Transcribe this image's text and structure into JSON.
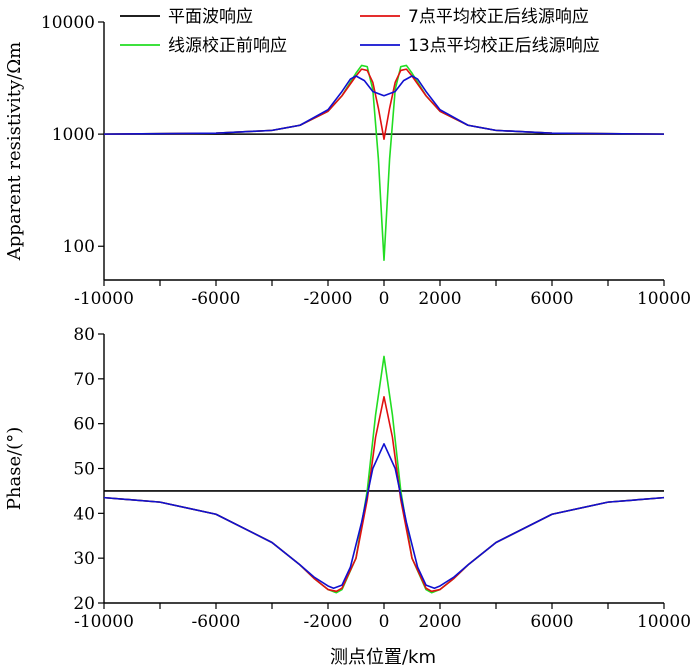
{
  "figure_xlabel": "测点位置/km",
  "chart_data": [
    {
      "type": "line",
      "name": "apparent-resistivity",
      "ylabel": "Apparent resistivity/Ωm",
      "yscale": "log",
      "xlim": [
        -10000,
        10000
      ],
      "ylim": [
        50,
        10000
      ],
      "x_ticks": [
        -10000,
        -8000,
        -6000,
        -4000,
        -2000,
        0,
        2000,
        4000,
        6000,
        8000,
        10000
      ],
      "x_tick_labels": [
        "-10000",
        "",
        "-6000",
        "",
        "-2000",
        "0",
        "2000",
        "",
        "6000",
        "",
        "10000"
      ],
      "y_ticks": [
        100,
        1000,
        10000
      ],
      "y_tick_labels": [
        "100",
        "1000",
        "10000"
      ],
      "legend": [
        {
          "label": "平面波响应",
          "color": "#000000"
        },
        {
          "label": "7点平均校正后线源响应",
          "color": "#e01010"
        },
        {
          "label": "线源校正前响应",
          "color": "#22dd22"
        },
        {
          "label": "13点平均校正后线源响应",
          "color": "#1010d0"
        }
      ],
      "series": [
        {
          "name": "平面波响应",
          "color": "#000000",
          "x": [
            -10000,
            10000
          ],
          "y": [
            1000,
            1000
          ]
        },
        {
          "name": "线源校正前响应",
          "color": "#22dd22",
          "x": [
            -10000,
            -6000,
            -4000,
            -3000,
            -2000,
            -1500,
            -1000,
            -800,
            -600,
            -400,
            -200,
            0,
            200,
            400,
            600,
            800,
            1000,
            1500,
            2000,
            3000,
            4000,
            6000,
            10000
          ],
          "y": [
            1000,
            1020,
            1080,
            1200,
            1600,
            2200,
            3500,
            4100,
            4000,
            2500,
            600,
            75,
            600,
            2500,
            4000,
            4100,
            3500,
            2200,
            1600,
            1200,
            1080,
            1020,
            1000
          ]
        },
        {
          "name": "7点平均校正后线源响应",
          "color": "#e01010",
          "x": [
            -10000,
            -6000,
            -4000,
            -3000,
            -2000,
            -1500,
            -1000,
            -800,
            -600,
            -400,
            -200,
            0,
            200,
            400,
            600,
            800,
            1000,
            1500,
            2000,
            3000,
            4000,
            6000,
            10000
          ],
          "y": [
            1000,
            1020,
            1080,
            1200,
            1600,
            2200,
            3300,
            3800,
            3700,
            2900,
            1700,
            900,
            1700,
            2900,
            3700,
            3800,
            3300,
            2200,
            1600,
            1200,
            1080,
            1020,
            1000
          ]
        },
        {
          "name": "13点平均校正后线源响应",
          "color": "#1010d0",
          "x": [
            -10000,
            -6000,
            -4000,
            -3000,
            -2000,
            -1500,
            -1200,
            -1000,
            -700,
            -400,
            0,
            400,
            700,
            1000,
            1200,
            1500,
            2000,
            3000,
            4000,
            6000,
            10000
          ],
          "y": [
            1000,
            1020,
            1080,
            1200,
            1650,
            2400,
            3100,
            3300,
            3000,
            2400,
            2200,
            2400,
            3000,
            3300,
            3100,
            2400,
            1650,
            1200,
            1080,
            1020,
            1000
          ]
        }
      ]
    },
    {
      "type": "line",
      "name": "phase",
      "ylabel": "Phase/(°)",
      "yscale": "linear",
      "xlim": [
        -10000,
        10000
      ],
      "ylim": [
        20,
        80
      ],
      "x_ticks": [
        -10000,
        -8000,
        -6000,
        -4000,
        -2000,
        0,
        2000,
        4000,
        6000,
        8000,
        10000
      ],
      "x_tick_labels": [
        "-10000",
        "",
        "-6000",
        "",
        "-2000",
        "0",
        "2000",
        "",
        "6000",
        "",
        "10000"
      ],
      "y_ticks": [
        20,
        30,
        40,
        50,
        60,
        70,
        80
      ],
      "y_tick_labels": [
        "20",
        "30",
        "40",
        "50",
        "60",
        "70",
        "80"
      ],
      "series": [
        {
          "name": "平面波响应",
          "color": "#000000",
          "x": [
            -10000,
            10000
          ],
          "y": [
            45,
            45
          ]
        },
        {
          "name": "线源校正前响应",
          "color": "#22dd22",
          "x": [
            -10000,
            -8000,
            -6000,
            -4000,
            -3000,
            -2500,
            -2000,
            -1700,
            -1500,
            -1000,
            -600,
            -300,
            0,
            300,
            600,
            1000,
            1500,
            1700,
            2000,
            2500,
            3000,
            4000,
            6000,
            8000,
            10000
          ],
          "y": [
            43.5,
            42.5,
            39.8,
            33.5,
            28.5,
            25.5,
            23,
            22.3,
            23,
            30,
            45,
            62,
            75,
            62,
            45,
            30,
            23,
            22.3,
            23,
            25.5,
            28.5,
            33.5,
            39.8,
            42.5,
            43.5
          ]
        },
        {
          "name": "7点平均校正后线源响应",
          "color": "#e01010",
          "x": [
            -10000,
            -8000,
            -6000,
            -4000,
            -3000,
            -2500,
            -2000,
            -1700,
            -1500,
            -1000,
            -600,
            -300,
            0,
            300,
            600,
            1000,
            1500,
            1700,
            2000,
            2500,
            3000,
            4000,
            6000,
            8000,
            10000
          ],
          "y": [
            43.5,
            42.5,
            39.8,
            33.5,
            28.5,
            25.5,
            23,
            22.6,
            23.3,
            30,
            43,
            57,
            66,
            57,
            43,
            30,
            23.3,
            22.6,
            23,
            25.5,
            28.5,
            33.5,
            39.8,
            42.5,
            43.5
          ]
        },
        {
          "name": "13点平均校正后线源响应",
          "color": "#1010d0",
          "x": [
            -10000,
            -8000,
            -6000,
            -4000,
            -3000,
            -2500,
            -2000,
            -1800,
            -1500,
            -1200,
            -800,
            -400,
            0,
            400,
            800,
            1200,
            1500,
            1800,
            2000,
            2500,
            3000,
            4000,
            6000,
            8000,
            10000
          ],
          "y": [
            43.5,
            42.5,
            39.8,
            33.5,
            28.5,
            25.8,
            23.8,
            23.3,
            24,
            28,
            38,
            50,
            55.5,
            50,
            38,
            28,
            24,
            23.3,
            23.8,
            25.8,
            28.5,
            33.5,
            39.8,
            42.5,
            43.5
          ]
        }
      ]
    }
  ]
}
